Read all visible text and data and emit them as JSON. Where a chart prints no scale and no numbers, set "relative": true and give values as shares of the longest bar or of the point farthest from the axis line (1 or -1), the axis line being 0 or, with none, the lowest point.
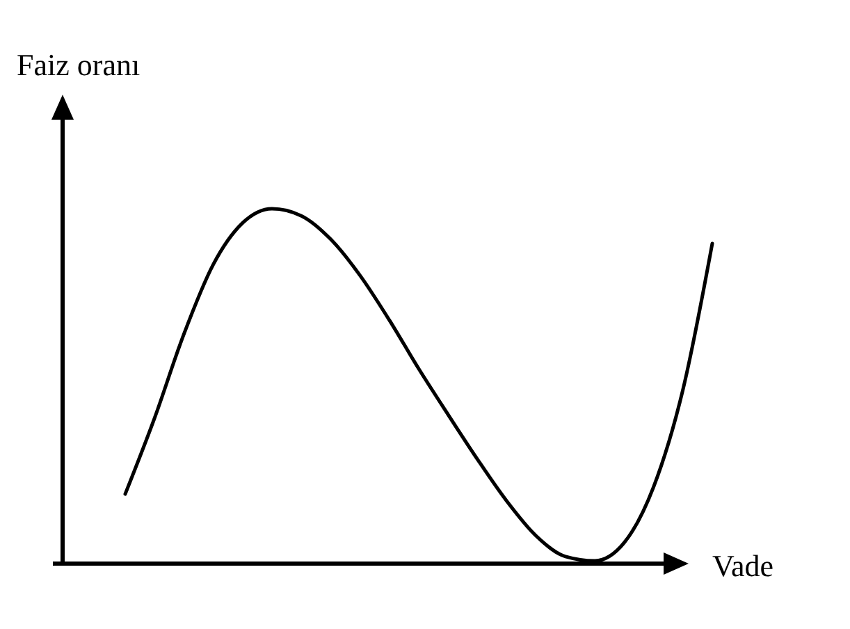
{
  "chart_data": {
    "type": "line",
    "xlabel": "Vade",
    "ylabel": "Faiz oranı",
    "relative": true,
    "color": "#000000",
    "categories": [
      null,
      null,
      null,
      null,
      null,
      null,
      null,
      null,
      null,
      null,
      null,
      null,
      null,
      null,
      null,
      null,
      null,
      null,
      null,
      null,
      null
    ],
    "values": [
      0.196,
      0.41,
      0.647,
      0.843,
      0.96,
      1,
      0.98,
      0.914,
      0.812,
      0.686,
      0.549,
      0.42,
      0.294,
      0.176,
      0.078,
      0.02,
      0.008,
      0.059,
      0.216,
      0.49,
      0.902
    ]
  }
}
